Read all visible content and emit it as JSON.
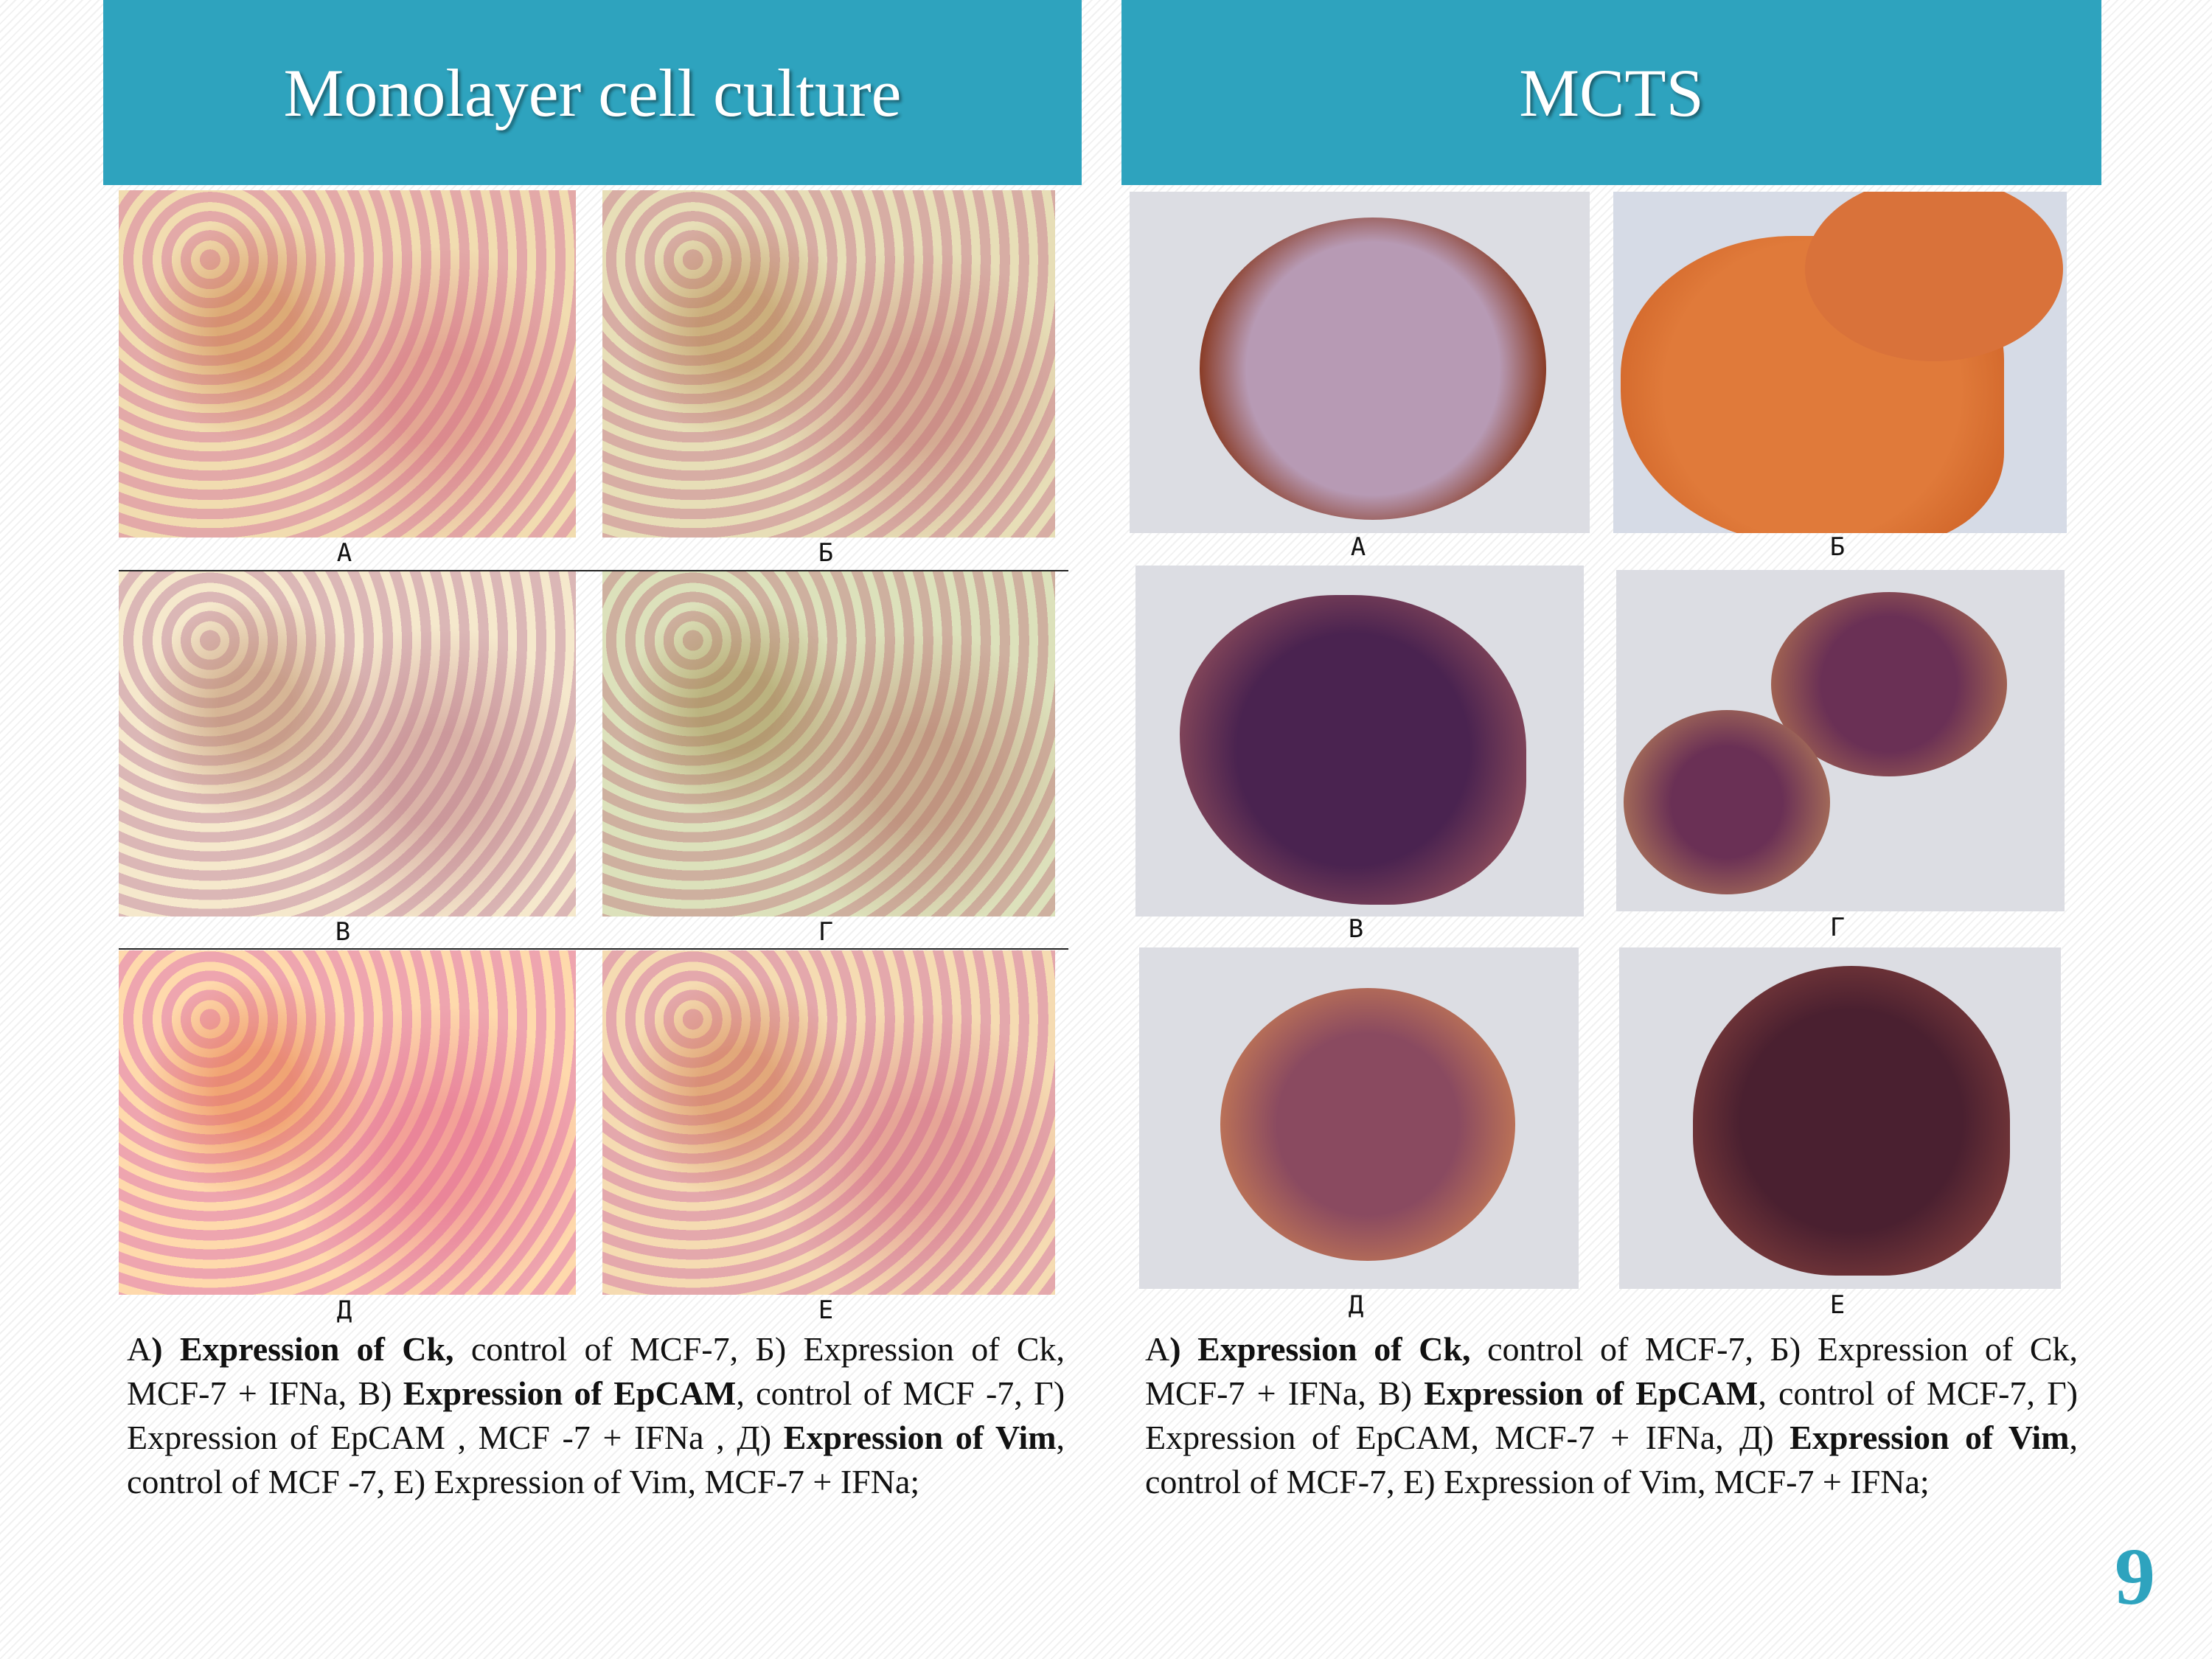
{
  "headers": [
    "Monolayer cell culture",
    "MCTS"
  ],
  "panels": [
    {
      "labels": [
        "А",
        "Б",
        "В",
        "Г",
        "Д",
        "Е"
      ],
      "caption": [
        {
          "text": "А",
          "bold": false
        },
        {
          "text": ") Expression of Ck,",
          "bold": true
        },
        {
          "text": " control of MCF-7, Б) Expression of Ck, MCF-7 + IFNa, В) ",
          "bold": false
        },
        {
          "text": "Expression of EpCAM",
          "bold": true
        },
        {
          "text": ", control of MCF -7, Г) Expression of EpCAM , MCF -7 + IFNa , Д) ",
          "bold": false
        },
        {
          "text": "Expression of Vim",
          "bold": true
        },
        {
          "text": ", control of MCF -7, Е) Expression of Vim, MCF-7 + IFNa;",
          "bold": false
        }
      ]
    },
    {
      "labels": [
        "А",
        "Б",
        "В",
        "Г",
        "Д",
        "Е"
      ],
      "caption": [
        {
          "text": "А",
          "bold": false
        },
        {
          "text": ") Expression of Ck,",
          "bold": true
        },
        {
          "text": " control of MCF-7, Б) Expression of Ck, MCF-7 + IFNa, В) ",
          "bold": false
        },
        {
          "text": "Expression of EpCAM",
          "bold": true
        },
        {
          "text": ", control of MCF-7, Г) Expression of EpCAM, MCF-7 + IFNa, Д) ",
          "bold": false
        },
        {
          "text": "Expression of Vim",
          "bold": true
        },
        {
          "text": ", control of MCF-7, Е) Expression of Vim, MCF-7 + IFNa;",
          "bold": false
        }
      ]
    }
  ],
  "page_number": "9"
}
